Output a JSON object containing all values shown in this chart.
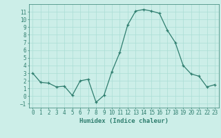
{
  "x": [
    0,
    1,
    2,
    3,
    4,
    5,
    6,
    7,
    8,
    9,
    10,
    11,
    12,
    13,
    14,
    15,
    16,
    17,
    18,
    19,
    20,
    21,
    22,
    23
  ],
  "y": [
    3,
    1.8,
    1.7,
    1.2,
    1.3,
    0.1,
    2.0,
    2.2,
    -0.8,
    0.1,
    3.2,
    5.7,
    9.3,
    11.1,
    11.3,
    11.1,
    10.8,
    8.6,
    7.0,
    4.0,
    2.9,
    2.6,
    1.2,
    1.5
  ],
  "xlabel": "Humidex (Indice chaleur)",
  "xlim": [
    -0.5,
    23.5
  ],
  "ylim": [
    -1.5,
    12
  ],
  "xticks": [
    0,
    1,
    2,
    3,
    4,
    5,
    6,
    7,
    8,
    9,
    10,
    11,
    12,
    13,
    14,
    15,
    16,
    17,
    18,
    19,
    20,
    21,
    22,
    23
  ],
  "yticks": [
    -1,
    0,
    1,
    2,
    3,
    4,
    5,
    6,
    7,
    8,
    9,
    10,
    11
  ],
  "bg_color": "#cceee8",
  "grid_color": "#aaddd5",
  "line_color": "#2e7d6e",
  "marker_color": "#2e7d6e",
  "tick_color": "#2e7d6e",
  "label_color": "#2e7d6e",
  "xlabel_fontsize": 6.5,
  "tick_fontsize": 5.5
}
